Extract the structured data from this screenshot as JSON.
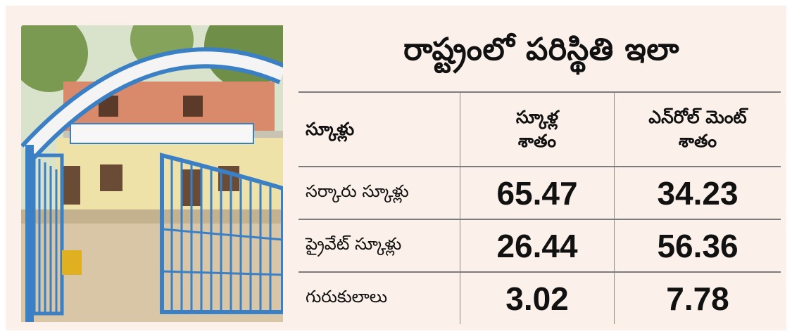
{
  "title": "రాష్ట్రంలో పరిస్థితి ఇలా",
  "photo": {
    "description_icon": "school-gate-photo"
  },
  "table": {
    "headers": [
      "స్కూళ్లు",
      "స్కూళ్ల\nశాతం",
      "ఎన్‌రోల్‌ మెంట్‌\nశాతం"
    ],
    "rows": [
      {
        "label": "సర్కారు స్కూళ్లు",
        "school_pct": "65.47",
        "enrolment_pct": "34.23"
      },
      {
        "label": "ప్రైవేట్‌ స్కూళ్లు",
        "school_pct": "26.44",
        "enrolment_pct": "56.36"
      },
      {
        "label": "గురుకులాలు",
        "school_pct": "3.02",
        "enrolment_pct": "7.78"
      }
    ]
  },
  "colors": {
    "background": "#fcf1ea",
    "gate": "#3b7fc4",
    "rule": "#7c7c7c"
  }
}
